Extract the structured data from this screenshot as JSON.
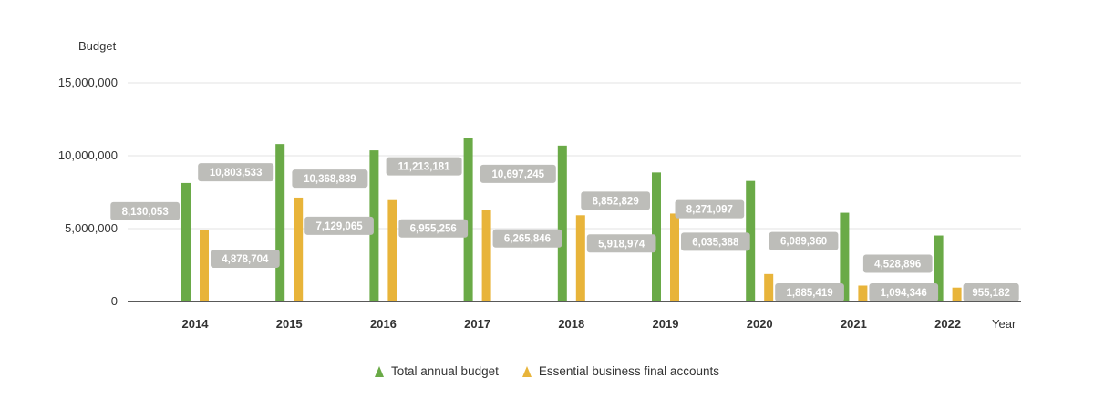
{
  "chart_data": {
    "type": "bar",
    "ylabel": "Budget",
    "xlabel": "Year",
    "ylim": [
      0,
      15000000
    ],
    "yticks": [
      0,
      5000000,
      10000000,
      15000000
    ],
    "ytick_labels": [
      "0",
      "5,000,000",
      "10,000,000",
      "15,000,000"
    ],
    "categories": [
      "2014",
      "2015",
      "2016",
      "2017",
      "2018",
      "2019",
      "2020",
      "2021",
      "2022"
    ],
    "grid": true,
    "legend_position": "bottom",
    "series": [
      {
        "name": "Total annual budget",
        "color": "#6aaa47",
        "values": [
          8130053,
          10803533,
          10368839,
          11213181,
          10697245,
          8852829,
          8271097,
          6089360,
          4528896
        ],
        "labels": [
          "8,130,053",
          "10,803,533",
          "10,368,839",
          "11,213,181",
          "10,697,245",
          "8,852,829",
          "8,271,097",
          "6,089,360",
          "4,528,896"
        ]
      },
      {
        "name": "Essential business final accounts",
        "color": "#e8b43a",
        "values": [
          4878704,
          7129065,
          6955256,
          6265846,
          5918974,
          6035388,
          1885419,
          1094346,
          955182
        ],
        "labels": [
          "4,878,704",
          "7,129,065",
          "6,955,256",
          "6,265,846",
          "5,918,974",
          "6,035,388",
          "1,885,419",
          "1,094,346",
          "955,182"
        ]
      }
    ]
  }
}
